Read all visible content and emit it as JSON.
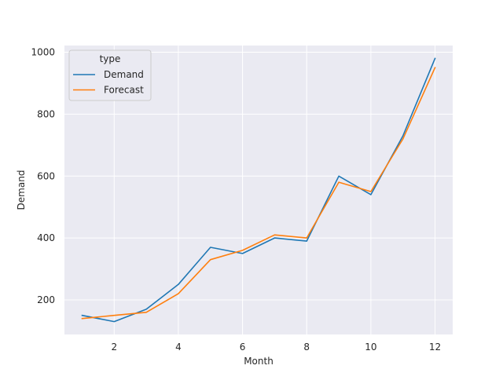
{
  "chart_data": {
    "type": "line",
    "title": "",
    "xlabel": "Month",
    "ylabel": "Demand",
    "x": [
      1,
      2,
      3,
      4,
      5,
      6,
      7,
      8,
      9,
      10,
      11,
      12
    ],
    "series": [
      {
        "name": "Demand",
        "color": "#1f77b4",
        "values": [
          150,
          130,
          170,
          250,
          370,
          350,
          400,
          390,
          600,
          540,
          730,
          980
        ]
      },
      {
        "name": "Forecast",
        "color": "#ff7f0e",
        "values": [
          140,
          150,
          160,
          220,
          330,
          360,
          410,
          400,
          580,
          550,
          720,
          950
        ]
      }
    ],
    "xlim": [
      0.45,
      12.55
    ],
    "ylim": [
      88.5,
      1021.5
    ],
    "xticks": [
      2,
      4,
      6,
      8,
      10,
      12
    ],
    "yticks": [
      200,
      400,
      600,
      800,
      1000
    ],
    "grid": true,
    "legend": {
      "title": "type",
      "placement": "top-left"
    },
    "background_color": "#eaeaf2",
    "grid_color": "#ffffff"
  }
}
